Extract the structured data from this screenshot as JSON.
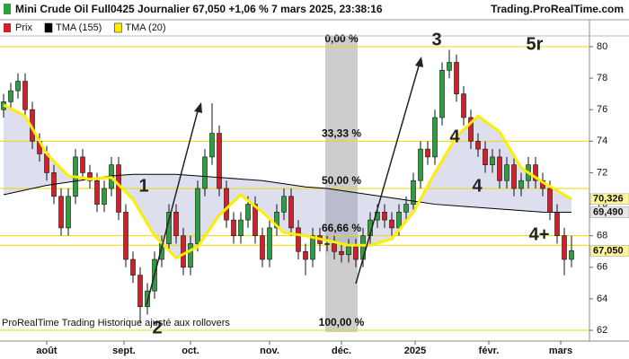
{
  "chart_data": {
    "type": "candlestick",
    "title": "Mini Crude Oil Full0425 Journalier 67,050 +1,06 % 7 mars 2025, 23:38:16",
    "source": "Trading.ProRealTime.com",
    "footer": "ProRealTime Trading  Historique ajusté aux rollovers",
    "price_name": "Prix",
    "up_color": "#2e9e3e",
    "down_color": "#d0202a",
    "candles": [
      [
        76.0,
        77.0,
        75.5,
        76.5
      ],
      [
        76.5,
        77.7,
        76.0,
        77.2
      ],
      [
        77.2,
        78.3,
        76.7,
        77.8
      ],
      [
        77.8,
        78.3,
        75.5,
        76.0
      ],
      [
        76.0,
        76.5,
        73.5,
        74.0
      ],
      [
        74.0,
        74.5,
        72.7,
        73.2
      ],
      [
        73.2,
        73.7,
        71.5,
        72.0
      ],
      [
        72.0,
        72.5,
        70.0,
        70.5
      ],
      [
        70.5,
        71.0,
        68.0,
        68.5
      ],
      [
        68.5,
        71.0,
        68.0,
        70.5
      ],
      [
        70.5,
        73.5,
        70.0,
        73.0
      ],
      [
        73.0,
        73.5,
        71.5,
        72.0
      ],
      [
        72.0,
        72.5,
        71.0,
        71.5
      ],
      [
        71.5,
        72.0,
        69.5,
        70.0
      ],
      [
        70.0,
        71.5,
        69.5,
        71.0
      ],
      [
        71.0,
        73.0,
        70.5,
        72.5
      ],
      [
        72.5,
        73.0,
        69.0,
        69.5
      ],
      [
        69.5,
        70.0,
        66.0,
        66.5
      ],
      [
        66.5,
        67.0,
        65.0,
        65.5
      ],
      [
        65.5,
        66.0,
        62.5,
        63.5
      ],
      [
        63.5,
        65.0,
        63.0,
        64.5
      ],
      [
        64.5,
        67.0,
        64.0,
        66.5
      ],
      [
        66.5,
        68.0,
        66.0,
        67.5
      ],
      [
        67.5,
        70.0,
        67.0,
        69.5
      ],
      [
        69.5,
        70.0,
        67.5,
        68.0
      ],
      [
        68.0,
        68.5,
        65.5,
        66.0
      ],
      [
        66.0,
        68.0,
        65.5,
        67.5
      ],
      [
        67.5,
        71.5,
        67.0,
        71.0
      ],
      [
        71.0,
        73.5,
        70.5,
        73.0
      ],
      [
        73.0,
        76.4,
        72.5,
        74.5
      ],
      [
        74.5,
        75.0,
        70.5,
        71.0
      ],
      [
        71.0,
        71.5,
        68.5,
        69.0
      ],
      [
        69.0,
        69.5,
        67.5,
        68.0
      ],
      [
        68.0,
        69.5,
        67.5,
        69.0
      ],
      [
        69.0,
        70.5,
        68.5,
        70.0
      ],
      [
        70.0,
        70.5,
        67.5,
        68.0
      ],
      [
        68.0,
        68.5,
        66.0,
        66.5
      ],
      [
        66.5,
        69.0,
        66.0,
        68.5
      ],
      [
        68.5,
        70.0,
        68.0,
        69.5
      ],
      [
        69.5,
        71.0,
        69.0,
        70.5
      ],
      [
        70.5,
        71.0,
        68.0,
        68.5
      ],
      [
        68.5,
        69.0,
        66.5,
        67.0
      ],
      [
        67.0,
        67.5,
        65.5,
        66.5
      ],
      [
        66.5,
        68.5,
        66.0,
        68.0
      ],
      [
        68.0,
        68.5,
        67.0,
        67.5
      ],
      [
        67.5,
        68.0,
        67.0,
        67.5
      ],
      [
        67.5,
        68.0,
        66.5,
        67.0
      ],
      [
        67.0,
        67.5,
        66.3,
        66.8
      ],
      [
        66.8,
        67.8,
        66.3,
        67.3
      ],
      [
        67.3,
        67.8,
        66.0,
        66.5
      ],
      [
        66.5,
        68.5,
        66.0,
        68.0
      ],
      [
        68.0,
        69.5,
        67.5,
        69.0
      ],
      [
        69.0,
        70.0,
        68.5,
        69.5
      ],
      [
        69.5,
        70.0,
        68.5,
        69.0
      ],
      [
        69.0,
        69.5,
        68.0,
        68.5
      ],
      [
        68.5,
        70.0,
        68.0,
        69.5
      ],
      [
        69.5,
        70.5,
        69.0,
        70.0
      ],
      [
        70.0,
        72.0,
        69.5,
        71.5
      ],
      [
        71.5,
        74.0,
        71.0,
        73.5
      ],
      [
        73.5,
        74.0,
        72.5,
        73.0
      ],
      [
        73.0,
        76.0,
        72.5,
        75.5
      ],
      [
        75.5,
        79.0,
        75.0,
        78.5
      ],
      [
        78.5,
        79.8,
        78.0,
        79.0
      ],
      [
        79.0,
        79.5,
        76.5,
        77.0
      ],
      [
        77.0,
        77.5,
        75.0,
        75.5
      ],
      [
        75.5,
        76.0,
        73.5,
        74.0
      ],
      [
        74.0,
        74.5,
        73.0,
        73.5
      ],
      [
        73.5,
        74.0,
        72.0,
        72.5
      ],
      [
        72.5,
        73.5,
        72.0,
        73.0
      ],
      [
        73.0,
        73.5,
        71.0,
        71.5
      ],
      [
        71.5,
        73.0,
        71.0,
        72.5
      ],
      [
        72.5,
        73.0,
        70.5,
        71.0
      ],
      [
        71.0,
        72.0,
        70.5,
        71.5
      ],
      [
        71.5,
        73.0,
        71.0,
        72.5
      ],
      [
        72.5,
        73.0,
        71.0,
        71.5
      ],
      [
        71.5,
        72.0,
        70.5,
        71.0
      ],
      [
        71.0,
        71.5,
        69.0,
        69.5
      ],
      [
        69.5,
        70.0,
        67.5,
        68.0
      ],
      [
        68.0,
        68.5,
        65.5,
        66.5
      ],
      [
        66.5,
        68.0,
        66.0,
        67.05
      ]
    ],
    "last_label": "67,050",
    "series": [
      {
        "name": "TMA (155)",
        "color": "#000000",
        "last_label": "69,490",
        "x": [
          0,
          3,
          6,
          9,
          12,
          15,
          18,
          21,
          24,
          27,
          30,
          33,
          36,
          39,
          42,
          45,
          48,
          51,
          54,
          57,
          60,
          63,
          66,
          69,
          72,
          75,
          79
        ],
        "values": [
          70.6,
          70.9,
          71.2,
          71.4,
          71.6,
          71.8,
          71.9,
          71.9,
          71.9,
          71.8,
          71.7,
          71.6,
          71.5,
          71.3,
          71.1,
          71.0,
          70.8,
          70.6,
          70.4,
          70.2,
          70.0,
          69.9,
          69.8,
          69.7,
          69.6,
          69.5,
          69.49
        ]
      },
      {
        "name": "TMA (20)",
        "color": "#ffee00",
        "last_label": "70,326",
        "x": [
          0,
          3,
          6,
          9,
          12,
          15,
          18,
          21,
          24,
          27,
          30,
          33,
          36,
          39,
          42,
          45,
          48,
          51,
          54,
          57,
          60,
          63,
          66,
          69,
          72,
          75,
          79
        ],
        "values": [
          76.3,
          75.6,
          73.2,
          71.8,
          71.6,
          71.7,
          70.3,
          68.0,
          66.6,
          67.3,
          69.3,
          70.6,
          69.5,
          68.2,
          68.0,
          67.7,
          67.4,
          67.4,
          67.8,
          69.5,
          72.0,
          74.3,
          75.6,
          74.6,
          72.3,
          71.4,
          70.326
        ]
      }
    ],
    "levels": [
      {
        "value": 80,
        "label": "0,00 %"
      },
      {
        "value": 74,
        "label": "33,33 %"
      },
      {
        "value": 71,
        "label": "50,00 %"
      },
      {
        "value": 68,
        "label": "66,66 %"
      },
      {
        "value": 67.4
      },
      {
        "value": 62,
        "label": "100,00 %"
      }
    ],
    "xlim": [
      -0.5,
      81.5
    ],
    "xticks": [
      {
        "value": 6,
        "label": "août"
      },
      {
        "value": 16.75,
        "label": "sept."
      },
      {
        "value": 26,
        "label": "oct."
      },
      {
        "value": 37,
        "label": "nov."
      },
      {
        "value": 47,
        "label": "déc."
      },
      {
        "value": 57.25,
        "label": "2025"
      },
      {
        "value": 67.5,
        "label": "févr."
      },
      {
        "value": 77.5,
        "label": "mars"
      }
    ],
    "ylim": [
      61.32,
      80.68
    ],
    "yticks": [
      62,
      64,
      66,
      68,
      70,
      72,
      74,
      76,
      78,
      80
    ],
    "annotations": [
      "1",
      "2",
      "3",
      "4",
      "4",
      "4+",
      "5r"
    ]
  }
}
